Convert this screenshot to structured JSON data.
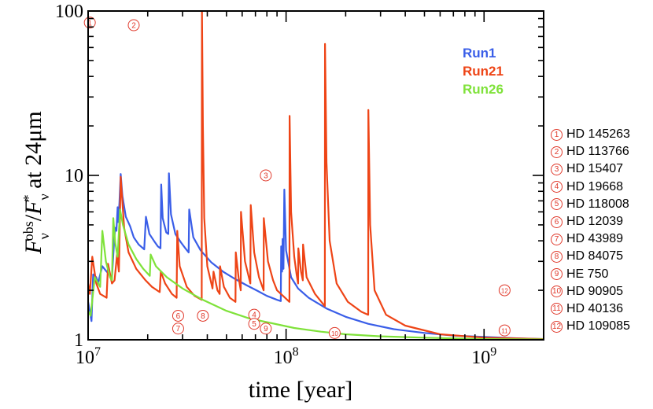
{
  "chart_data": {
    "type": "line",
    "title": "",
    "xlabel": "time [year]",
    "ylabel": "F_ν^obs / F_ν^* at 24μm",
    "x_scale": "log",
    "y_scale": "log",
    "xlim": [
      10000000,
      2000000000
    ],
    "ylim": [
      1,
      100
    ],
    "x_ticks": [
      {
        "value": 10000000,
        "base": "10",
        "exp": "7"
      },
      {
        "value": 100000000,
        "base": "10",
        "exp": "8"
      },
      {
        "value": 1000000000,
        "base": "10",
        "exp": "9"
      }
    ],
    "y_ticks": [
      {
        "value": 1,
        "label": "1"
      },
      {
        "value": 10,
        "label": "10"
      },
      {
        "value": 100,
        "label": "100"
      }
    ],
    "legend_position": "top-right",
    "series": [
      {
        "name": "Run1",
        "color": "#3a5ee8",
        "points": [
          [
            10000000,
            1.7
          ],
          [
            10400000,
            1.3
          ],
          [
            10600000,
            2.5
          ],
          [
            11000000,
            2.4
          ],
          [
            11200000,
            2.2
          ],
          [
            11800000,
            2.8
          ],
          [
            12400000,
            2.6
          ],
          [
            13200000,
            2.4
          ],
          [
            13500000,
            3.8
          ],
          [
            13700000,
            4.8
          ],
          [
            13900000,
            4.6
          ],
          [
            14100000,
            6.4
          ],
          [
            14200000,
            5.2
          ],
          [
            14400000,
            6.8
          ],
          [
            14600000,
            10.2
          ],
          [
            14900000,
            7.5
          ],
          [
            15500000,
            5.6
          ],
          [
            16300000,
            4.9
          ],
          [
            17000000,
            4.2
          ],
          [
            18000000,
            3.8
          ],
          [
            19200000,
            3.55
          ],
          [
            19600000,
            5.6
          ],
          [
            20400000,
            4.4
          ],
          [
            21500000,
            4.0
          ],
          [
            22500000,
            3.7
          ],
          [
            23200000,
            3.6
          ],
          [
            23400000,
            8.8
          ],
          [
            23800000,
            5.5
          ],
          [
            24800000,
            4.5
          ],
          [
            25400000,
            4.4
          ],
          [
            25600000,
            10.3
          ],
          [
            26200000,
            5.8
          ],
          [
            27600000,
            4.4
          ],
          [
            29500000,
            3.9
          ],
          [
            31000000,
            3.6
          ],
          [
            32200000,
            3.4
          ],
          [
            32400000,
            6.2
          ],
          [
            34000000,
            4.2
          ],
          [
            37000000,
            3.5
          ],
          [
            42000000,
            2.95
          ],
          [
            48000000,
            2.6
          ],
          [
            55000000,
            2.35
          ],
          [
            63000000,
            2.15
          ],
          [
            72000000,
            1.98
          ],
          [
            80000000,
            1.85
          ],
          [
            90000000,
            1.75
          ],
          [
            94000000,
            1.72
          ],
          [
            94500000,
            3.7
          ],
          [
            95500000,
            2.6
          ],
          [
            96000000,
            4.1
          ],
          [
            97000000,
            2.7
          ],
          [
            98000000,
            8.2
          ],
          [
            100000000,
            3.5
          ],
          [
            106000000,
            2.4
          ],
          [
            115000000,
            2.05
          ],
          [
            130000000,
            1.8
          ],
          [
            160000000,
            1.55
          ],
          [
            200000000,
            1.38
          ],
          [
            260000000,
            1.25
          ],
          [
            350000000,
            1.16
          ],
          [
            500000000,
            1.1
          ],
          [
            700000000,
            1.06
          ],
          [
            1000000000,
            1.04
          ],
          [
            1500000000,
            1.02
          ],
          [
            2000000000,
            1.01
          ]
        ]
      },
      {
        "name": "Run21",
        "color": "#ee4416",
        "points": [
          [
            10000000,
            2.2
          ],
          [
            10200000,
            1.9
          ],
          [
            10500000,
            3.2
          ],
          [
            11000000,
            2.2
          ],
          [
            11500000,
            1.9
          ],
          [
            12400000,
            1.8
          ],
          [
            12600000,
            2.9
          ],
          [
            13200000,
            2.2
          ],
          [
            13600000,
            2.3
          ],
          [
            14000000,
            3.3
          ],
          [
            14300000,
            2.6
          ],
          [
            14500000,
            6.0
          ],
          [
            14600000,
            9.8
          ],
          [
            15200000,
            4.8
          ],
          [
            16000000,
            3.4
          ],
          [
            17500000,
            2.7
          ],
          [
            19500000,
            2.3
          ],
          [
            21000000,
            2.1
          ],
          [
            23000000,
            1.95
          ],
          [
            23300000,
            2.6
          ],
          [
            24500000,
            2.2
          ],
          [
            26500000,
            1.9
          ],
          [
            28000000,
            1.8
          ],
          [
            28200000,
            4.6
          ],
          [
            29000000,
            2.8
          ],
          [
            31500000,
            2.1
          ],
          [
            34500000,
            1.85
          ],
          [
            37500000,
            1.75
          ],
          [
            37600000,
            100
          ],
          [
            38000000,
            20
          ],
          [
            38600000,
            5.5
          ],
          [
            40000000,
            2.8
          ],
          [
            42500000,
            2.05
          ],
          [
            43000000,
            2.6
          ],
          [
            45000000,
            2.0
          ],
          [
            46200000,
            1.9
          ],
          [
            46400000,
            2.8
          ],
          [
            48500000,
            2.1
          ],
          [
            52000000,
            1.8
          ],
          [
            55500000,
            1.7
          ],
          [
            55700000,
            3.4
          ],
          [
            57500000,
            2.4
          ],
          [
            59000000,
            2.0
          ],
          [
            59200000,
            6.0
          ],
          [
            62000000,
            3.0
          ],
          [
            66000000,
            2.2
          ],
          [
            66300000,
            6.6
          ],
          [
            69000000,
            3.4
          ],
          [
            73000000,
            2.4
          ],
          [
            77000000,
            2.0
          ],
          [
            77200000,
            5.5
          ],
          [
            81000000,
            3.0
          ],
          [
            86000000,
            2.3
          ],
          [
            90000000,
            2.0
          ],
          [
            104000000,
            1.7
          ],
          [
            104200000,
            23
          ],
          [
            106000000,
            6.0
          ],
          [
            110000000,
            3.2
          ],
          [
            113000000,
            2.5
          ],
          [
            115000000,
            2.2
          ],
          [
            115300000,
            3.6
          ],
          [
            119000000,
            2.6
          ],
          [
            121500000,
            2.3
          ],
          [
            121800000,
            3.8
          ],
          [
            127000000,
            2.4
          ],
          [
            140000000,
            1.9
          ],
          [
            157000000,
            1.6
          ],
          [
            157200000,
            63
          ],
          [
            160000000,
            12
          ],
          [
            166000000,
            4.0
          ],
          [
            180000000,
            2.2
          ],
          [
            205000000,
            1.7
          ],
          [
            240000000,
            1.48
          ],
          [
            260000000,
            1.42
          ],
          [
            260300000,
            25
          ],
          [
            266000000,
            5.0
          ],
          [
            280000000,
            2.0
          ],
          [
            320000000,
            1.42
          ],
          [
            400000000,
            1.22
          ],
          [
            600000000,
            1.08
          ],
          [
            1000000000,
            1.03
          ],
          [
            2000000000,
            1.01
          ]
        ]
      },
      {
        "name": "Run26",
        "color": "#7fe23a",
        "points": [
          [
            10000000,
            1.5
          ],
          [
            10300000,
            1.4
          ],
          [
            10800000,
            2.4
          ],
          [
            11500000,
            2.1
          ],
          [
            11800000,
            4.6
          ],
          [
            12300000,
            3.0
          ],
          [
            12900000,
            2.4
          ],
          [
            13200000,
            2.3
          ],
          [
            13400000,
            5.5
          ],
          [
            13700000,
            3.9
          ],
          [
            14100000,
            3.2
          ],
          [
            14500000,
            6.2
          ],
          [
            15000000,
            5.0
          ],
          [
            16000000,
            3.8
          ],
          [
            17500000,
            3.1
          ],
          [
            19000000,
            2.7
          ],
          [
            20500000,
            2.45
          ],
          [
            20700000,
            3.3
          ],
          [
            22000000,
            2.8
          ],
          [
            25000000,
            2.4
          ],
          [
            30000000,
            2.05
          ],
          [
            38000000,
            1.75
          ],
          [
            50000000,
            1.5
          ],
          [
            65000000,
            1.35
          ],
          [
            85000000,
            1.26
          ],
          [
            110000000,
            1.18
          ],
          [
            150000000,
            1.12
          ],
          [
            200000000,
            1.08
          ],
          [
            300000000,
            1.05
          ],
          [
            500000000,
            1.03
          ],
          [
            1000000000,
            1.01
          ],
          [
            2000000000,
            1.005
          ]
        ]
      }
    ],
    "annotations": [
      {
        "num": "1",
        "x": 10200000,
        "y": 85
      },
      {
        "num": "2",
        "x": 17000000,
        "y": 82
      },
      {
        "num": "3",
        "x": 79000000,
        "y": 10
      },
      {
        "num": "4",
        "x": 69000000,
        "y": 1.42
      },
      {
        "num": "5",
        "x": 69000000,
        "y": 1.25
      },
      {
        "num": "6",
        "x": 28500000,
        "y": 1.4
      },
      {
        "num": "7",
        "x": 28500000,
        "y": 1.17
      },
      {
        "num": "8",
        "x": 38000000,
        "y": 1.4
      },
      {
        "num": "9",
        "x": 79000000,
        "y": 1.17
      },
      {
        "num": "10",
        "x": 176000000,
        "y": 1.1
      },
      {
        "num": "11",
        "x": 1270000000,
        "y": 1.14
      },
      {
        "num": "12",
        "x": 1270000000,
        "y": 2.0
      }
    ]
  },
  "star_list": [
    {
      "num": "1",
      "name": "HD 145263"
    },
    {
      "num": "2",
      "name": "HD 113766"
    },
    {
      "num": "3",
      "name": "HD 15407"
    },
    {
      "num": "4",
      "name": "HD 19668"
    },
    {
      "num": "5",
      "name": "HD 118008"
    },
    {
      "num": "6",
      "name": "HD 12039"
    },
    {
      "num": "7",
      "name": "HD 43989"
    },
    {
      "num": "8",
      "name": "HD 84075"
    },
    {
      "num": "9",
      "name": "HE 750"
    },
    {
      "num": "10",
      "name": "HD 90905"
    },
    {
      "num": "11",
      "name": "HD 40136"
    },
    {
      "num": "12",
      "name": "HD 109085"
    }
  ]
}
